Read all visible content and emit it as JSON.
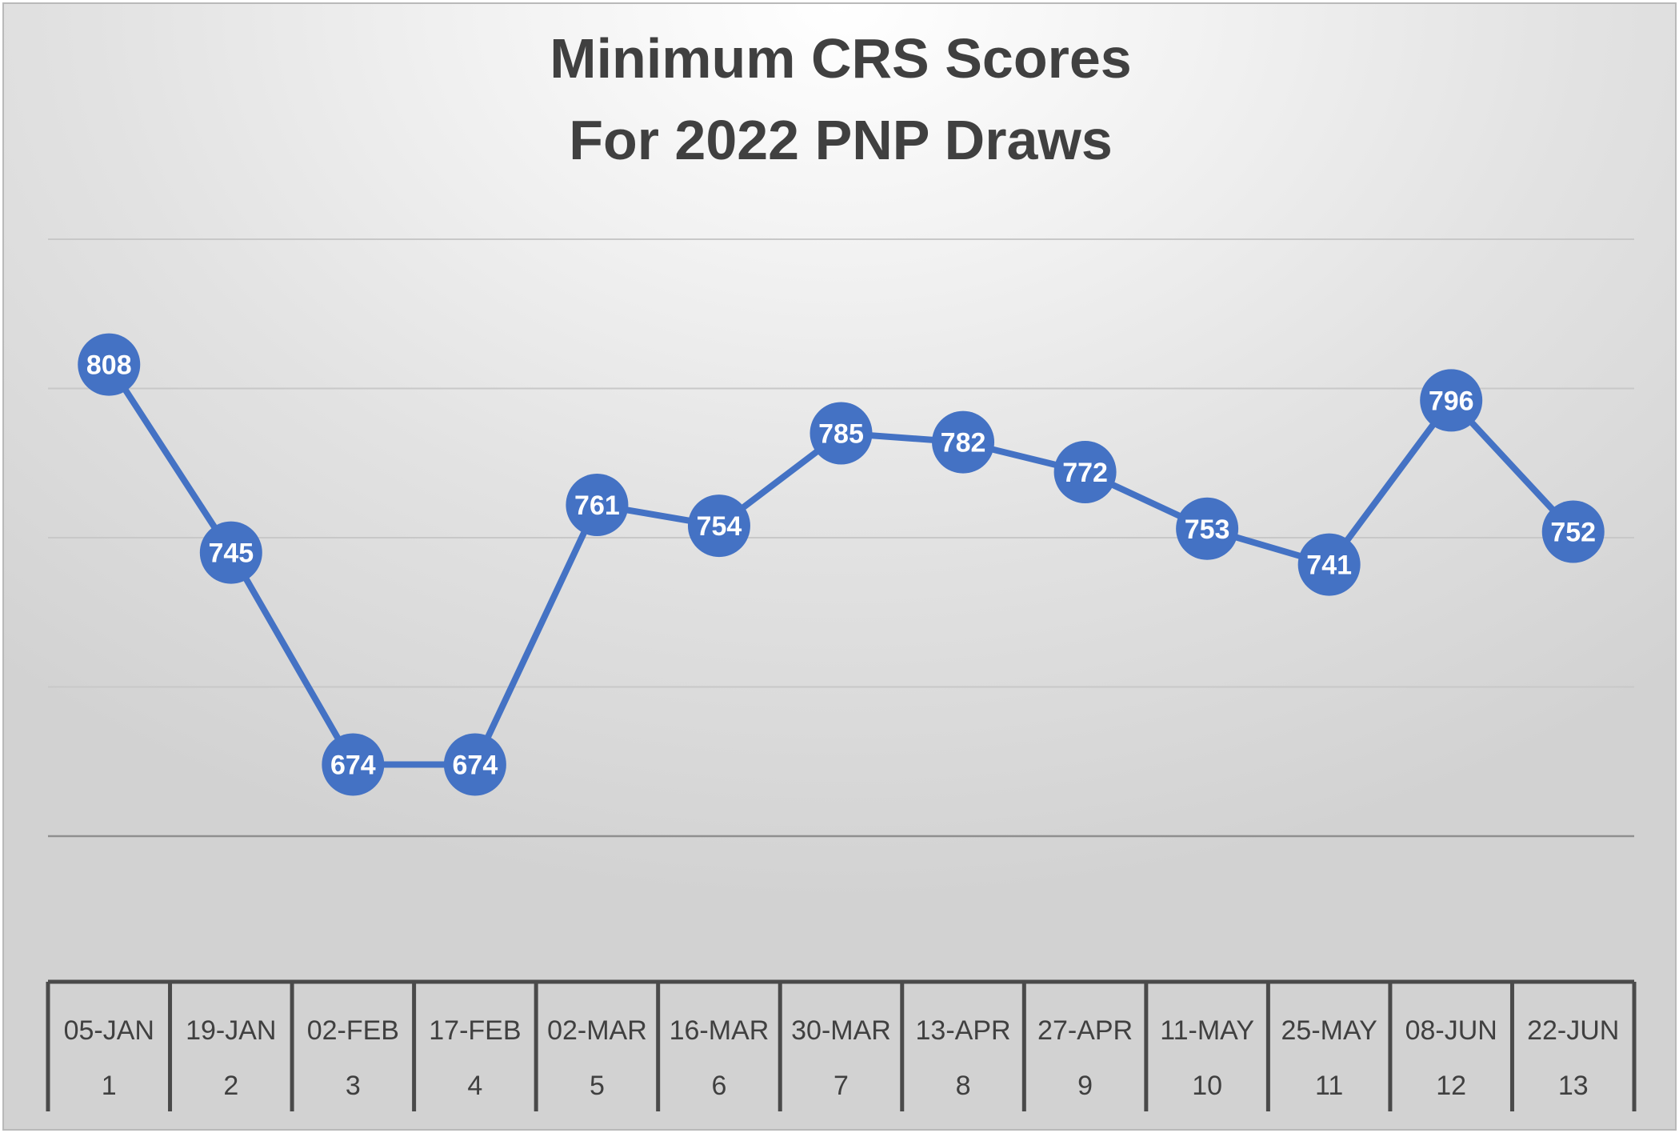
{
  "chart_data": {
    "type": "line",
    "title": "Minimum CRS Scores\nFor 2022 PNP Draws",
    "title_lines": [
      "Minimum CRS Scores",
      "For 2022 PNP Draws"
    ],
    "categories": [
      "05-JAN",
      "19-JAN",
      "02-FEB",
      "17-FEB",
      "02-MAR",
      "16-MAR",
      "30-MAR",
      "13-APR",
      "27-APR",
      "11-MAY",
      "25-MAY",
      "08-JUN",
      "22-JUN"
    ],
    "category_numbers": [
      "1",
      "2",
      "3",
      "4",
      "5",
      "6",
      "7",
      "8",
      "9",
      "10",
      "11",
      "12",
      "13"
    ],
    "series": [
      {
        "values": [
          808,
          745,
          674,
          674,
          761,
          754,
          785,
          782,
          772,
          753,
          741,
          796,
          752
        ],
        "color": "#4472C4"
      }
    ],
    "ylim": [
      550,
      850
    ],
    "gridlines": [
      650,
      700,
      750,
      800,
      850
    ],
    "xlabel": "",
    "ylabel": "",
    "legend": "none",
    "grid": true,
    "colors": {
      "line": "#4472C4",
      "marker_label": "#ffffff",
      "gridline": "#c8c8c8",
      "text": "#404040"
    }
  }
}
